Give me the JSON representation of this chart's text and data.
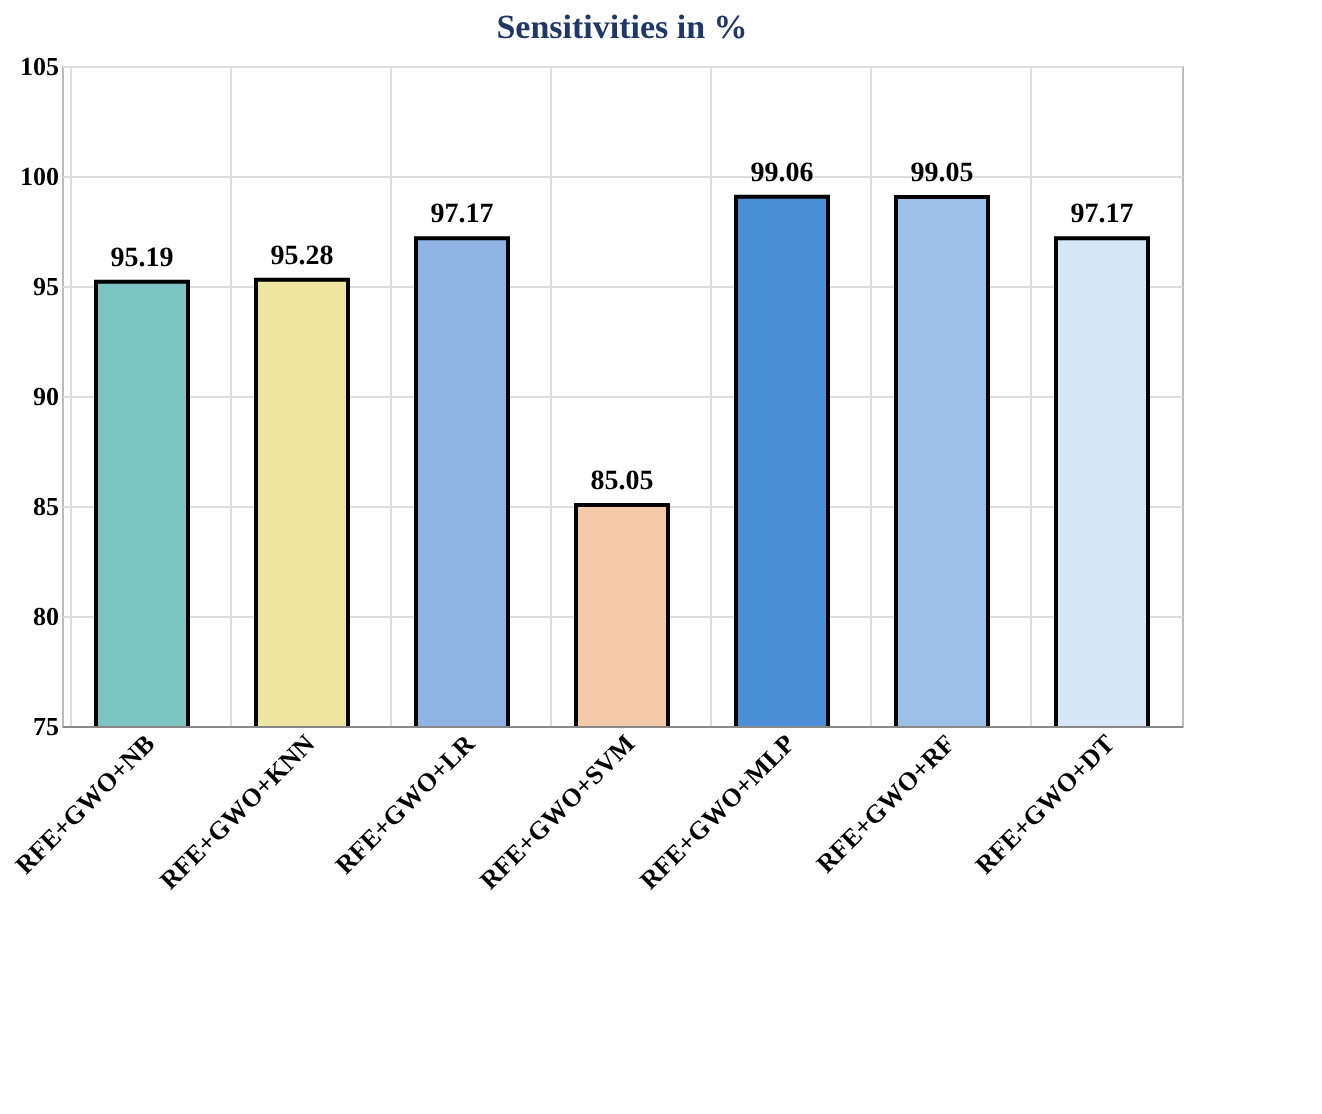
{
  "chart_data": {
    "type": "bar",
    "title": "Sensitivities in %",
    "categories": [
      "RFE+GWO+NB",
      "RFE+GWO+KNN",
      "RFE+GWO+LR",
      "RFE+GWO+SVM",
      "RFE+GWO+MLP",
      "RFE+GWO+RF",
      "RFE+GWO+DT"
    ],
    "values": [
      95.19,
      95.28,
      97.17,
      85.05,
      99.06,
      99.05,
      97.17
    ],
    "colors": [
      "#7fc4c4",
      "#ede5a0",
      "#8fb4e3",
      "#f4c9a8",
      "#4a8fd6",
      "#9cc0e8",
      "#d6e6f7"
    ],
    "ylim": [
      75,
      105
    ],
    "yticks": [
      75,
      80,
      85,
      90,
      95,
      100,
      105
    ],
    "grid": true,
    "data_labels": true
  }
}
